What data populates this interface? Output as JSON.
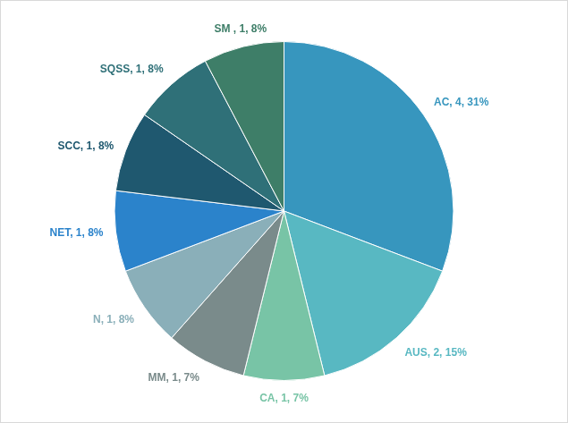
{
  "chart_data": {
    "type": "pie",
    "categories": [
      "AC",
      "AUS",
      "CA",
      "MM",
      "N",
      "NET",
      "SCC",
      "SQSS",
      "SM"
    ],
    "values": [
      4,
      2,
      1,
      1,
      1,
      1,
      1,
      1,
      1
    ],
    "value_labels": [
      "AC, 4, 31%",
      "AUS, 2, 15%",
      "CA, 1, 7%",
      "MM, 1, 7%",
      "N, 1, 8%",
      "NET, 1, 8%",
      "SCC, 1, 8%",
      "SQSS, 1, 8%",
      "SM , 1, 8%"
    ],
    "colors": [
      "#3796be",
      "#58b8c2",
      "#78c4a6",
      "#7a8b8b",
      "#8aafb9",
      "#2b83cb",
      "#1f586f",
      "#2f7078",
      "#3e7e68"
    ],
    "data_labels": true,
    "legend": "none"
  }
}
